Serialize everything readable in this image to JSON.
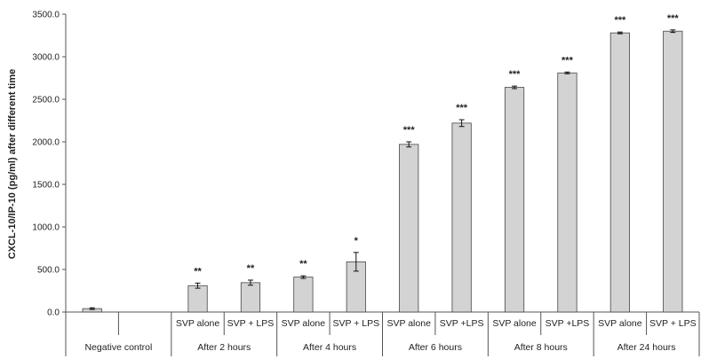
{
  "chart_data": {
    "type": "bar",
    "ylabel": "CXCL-10/IP-10 (pg/ml) after different time",
    "ylim": [
      0,
      3500
    ],
    "yticks": [
      "0.0",
      "500.0",
      "1000.0",
      "1500.0",
      "2000.0",
      "2500.0",
      "3000.0",
      "3500.0"
    ],
    "grid": false,
    "bar_color": "#d3d3d3",
    "groups": [
      {
        "label": "Negative control",
        "bars": [
          {
            "label": "",
            "value": 40,
            "error": 10,
            "sig": ""
          },
          {
            "label": "",
            "value": null,
            "error": null,
            "sig": ""
          }
        ]
      },
      {
        "label": "After 2 hours",
        "bars": [
          {
            "label": "SVP alone",
            "value": 310,
            "error": 30,
            "sig": "**"
          },
          {
            "label": "SVP + LPS",
            "value": 345,
            "error": 30,
            "sig": "**"
          }
        ]
      },
      {
        "label": "After 4 hours",
        "bars": [
          {
            "label": "SVP alone",
            "value": 410,
            "error": 15,
            "sig": "**"
          },
          {
            "label": "SVP + LPS",
            "value": 590,
            "error": 110,
            "sig": "*"
          }
        ]
      },
      {
        "label": "After 6 hours",
        "bars": [
          {
            "label": "SVP alone",
            "value": 1970,
            "error": 30,
            "sig": "***"
          },
          {
            "label": "SVP +LPS",
            "value": 2220,
            "error": 40,
            "sig": "***"
          }
        ]
      },
      {
        "label": "After 8 hours",
        "bars": [
          {
            "label": "SVP alone",
            "value": 2640,
            "error": 15,
            "sig": "***"
          },
          {
            "label": "SVP +LPS",
            "value": 2810,
            "error": 10,
            "sig": "***"
          }
        ]
      },
      {
        "label": "After 24 hours",
        "bars": [
          {
            "label": "SVP alone",
            "value": 3280,
            "error": 10,
            "sig": "***"
          },
          {
            "label": "SVP + LPS",
            "value": 3300,
            "error": 15,
            "sig": "***"
          }
        ]
      }
    ]
  }
}
